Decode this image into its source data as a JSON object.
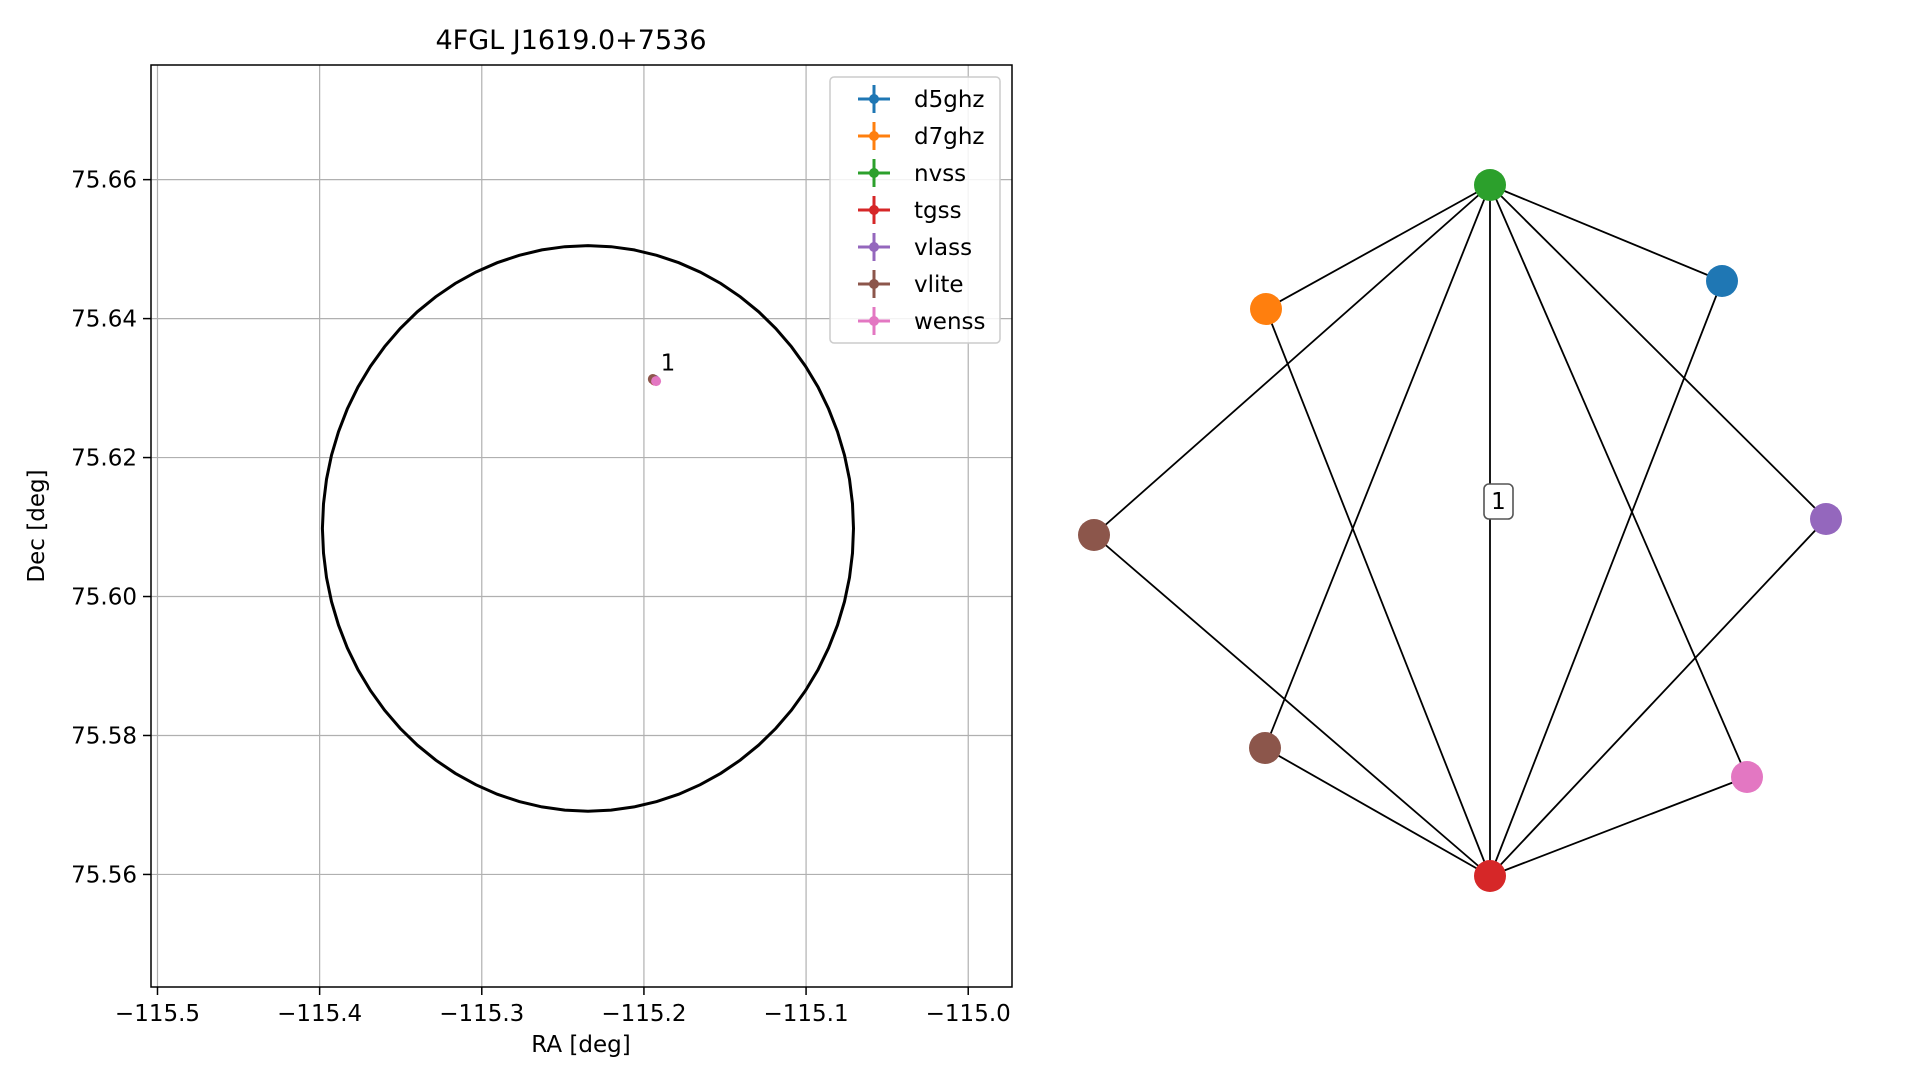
{
  "chart_data": [
    {
      "type": "scatter",
      "title": "4FGL J1619.0+7536",
      "xlabel": "RA [deg]",
      "ylabel": "Dec [deg]",
      "xlim": [
        -115.504,
        -114.973
      ],
      "ylim": [
        75.5438,
        75.6765
      ],
      "x_ticks": [
        -115.5,
        -115.4,
        -115.3,
        -115.2,
        -115.1,
        -115.0
      ],
      "x_tick_labels": [
        "−115.5",
        "−115.4",
        "−115.3",
        "−115.2",
        "−115.1",
        "−115.0"
      ],
      "y_ticks": [
        75.56,
        75.58,
        75.6,
        75.62,
        75.64,
        75.66
      ],
      "y_tick_labels": [
        "75.56",
        "75.58",
        "75.60",
        "75.62",
        "75.64",
        "75.66"
      ],
      "grid": true,
      "legend_position": "top-right",
      "series": [
        {
          "name": "d5ghz",
          "color": "#1f77b4",
          "x": [
            -115.1934
          ],
          "y": [
            75.6311
          ]
        },
        {
          "name": "d7ghz",
          "color": "#ff7f0e",
          "x": [
            -115.1934
          ],
          "y": [
            75.6311
          ]
        },
        {
          "name": "nvss",
          "color": "#2ca02c",
          "x": [
            -115.1934
          ],
          "y": [
            75.6311
          ]
        },
        {
          "name": "tgss",
          "color": "#d62728",
          "x": [
            -115.1934
          ],
          "y": [
            75.6311
          ]
        },
        {
          "name": "vlass",
          "color": "#9467bd",
          "x": [
            -115.1934
          ],
          "y": [
            75.6312
          ]
        },
        {
          "name": "vlite",
          "color": "#8c564b",
          "x": [
            -115.1945
          ],
          "y": [
            75.6313
          ]
        },
        {
          "name": "wenss",
          "color": "#e377c2",
          "x": [
            -115.1925
          ],
          "y": [
            75.631
          ]
        }
      ],
      "point_annotation": {
        "text": "1",
        "x": -115.1934,
        "y": 75.6311
      },
      "circle": {
        "center_ra": -115.2345,
        "center_dec": 75.6098,
        "radius_dec": 0.0407,
        "color": "#000000"
      }
    },
    {
      "type": "network",
      "nodes": [
        {
          "id": "nvss",
          "color": "#2ca02c"
        },
        {
          "id": "d5ghz",
          "color": "#1f77b4"
        },
        {
          "id": "vlass",
          "color": "#9467bd"
        },
        {
          "id": "wenss",
          "color": "#e377c2"
        },
        {
          "id": "tgss",
          "color": "#d62728"
        },
        {
          "id": "vlite_a",
          "color": "#8c564b"
        },
        {
          "id": "vlite_b",
          "color": "#8c564b"
        },
        {
          "id": "d7ghz",
          "color": "#ff7f0e"
        }
      ],
      "edges": [
        [
          "nvss",
          "d5ghz"
        ],
        [
          "nvss",
          "vlass"
        ],
        [
          "nvss",
          "wenss"
        ],
        [
          "nvss",
          "tgss"
        ],
        [
          "nvss",
          "vlite_a"
        ],
        [
          "nvss",
          "vlite_b"
        ],
        [
          "nvss",
          "d7ghz"
        ],
        [
          "tgss",
          "d5ghz"
        ],
        [
          "tgss",
          "vlass"
        ],
        [
          "tgss",
          "wenss"
        ],
        [
          "tgss",
          "vlite_a"
        ],
        [
          "tgss",
          "vlite_b"
        ],
        [
          "tgss",
          "d7ghz"
        ]
      ],
      "edge_label": {
        "text": "1",
        "edge": [
          "nvss",
          "tgss"
        ]
      }
    }
  ]
}
